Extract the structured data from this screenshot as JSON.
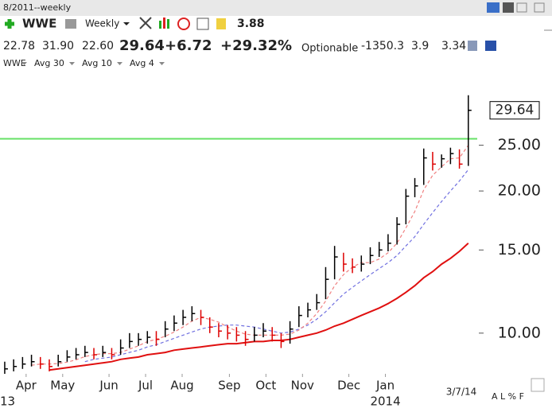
{
  "header": {
    "period": "8/2011--weekly",
    "symbol": "WWE",
    "interval": "Weekly",
    "stat": "3.88",
    "quote": {
      "open": "22.78",
      "high": "31.90",
      "low": "22.60",
      "last": "29.64",
      "change": "+6.72",
      "change_pct": "+29.32%",
      "optionable": "Optionable",
      "flow": "-1350.3",
      "ratio": "3.9",
      "eps": "3.34"
    }
  },
  "chart_data": {
    "type": "ohlc",
    "price": {
      "name": "WWE",
      "up_color": "#000000",
      "down_color": "#dd0000",
      "high": [
        8.7,
        8.8,
        8.9,
        9.0,
        8.9,
        8.8,
        9.0,
        9.2,
        9.3,
        9.4,
        9.3,
        9.4,
        9.3,
        9.7,
        10.0,
        10.0,
        10.1,
        10.1,
        10.6,
        10.9,
        11.2,
        11.4,
        11.2,
        10.8,
        10.5,
        10.4,
        10.3,
        10.1,
        10.3,
        10.5,
        10.3,
        10.0,
        10.6,
        11.4,
        11.6,
        12.1,
        13.8,
        15.3,
        14.8,
        14.4,
        14.6,
        15.2,
        15.6,
        16.2,
        17.6,
        20.2,
        21.3,
        24.6,
        24.2,
        23.9,
        24.7,
        24.5,
        31.9
      ],
      "low": [
        8.2,
        8.3,
        8.4,
        8.5,
        8.4,
        8.3,
        8.5,
        8.7,
        8.8,
        8.9,
        8.8,
        8.9,
        8.8,
        9.0,
        9.3,
        9.4,
        9.5,
        9.4,
        9.8,
        10.1,
        10.4,
        10.6,
        10.4,
        10.0,
        9.8,
        9.7,
        9.6,
        9.4,
        9.6,
        9.8,
        9.6,
        9.3,
        9.5,
        10.3,
        10.8,
        11.2,
        11.8,
        13.0,
        13.5,
        13.4,
        13.5,
        14.0,
        14.5,
        14.9,
        15.4,
        17.0,
        19.4,
        20.6,
        22.1,
        22.4,
        22.8,
        22.3,
        22.6
      ],
      "close": [
        8.4,
        8.5,
        8.6,
        8.7,
        8.6,
        8.5,
        8.7,
        8.9,
        9.0,
        9.1,
        9.0,
        9.1,
        9.0,
        9.3,
        9.6,
        9.7,
        9.8,
        9.7,
        10.2,
        10.5,
        10.8,
        11.0,
        10.8,
        10.3,
        10.1,
        10.0,
        9.9,
        9.7,
        9.9,
        10.1,
        9.9,
        9.6,
        10.2,
        10.9,
        11.2,
        11.6,
        13.0,
        14.5,
        14.0,
        13.8,
        14.0,
        14.6,
        15.0,
        15.5,
        17.0,
        19.5,
        20.5,
        23.5,
        22.8,
        23.4,
        24.0,
        22.8,
        29.64
      ]
    },
    "averages": [
      {
        "name": "Avg 30",
        "color": "#e01010",
        "dash": false,
        "values": [
          null,
          null,
          null,
          null,
          null,
          8.35,
          8.4,
          8.45,
          8.5,
          8.55,
          8.6,
          8.65,
          8.7,
          8.8,
          8.85,
          8.9,
          9.0,
          9.05,
          9.1,
          9.2,
          9.25,
          9.3,
          9.35,
          9.4,
          9.45,
          9.5,
          9.5,
          9.55,
          9.6,
          9.6,
          9.65,
          9.65,
          9.7,
          9.8,
          9.9,
          10.0,
          10.15,
          10.35,
          10.5,
          10.7,
          10.9,
          11.1,
          11.3,
          11.55,
          11.85,
          12.2,
          12.6,
          13.1,
          13.5,
          14.0,
          14.4,
          14.9,
          15.5
        ]
      },
      {
        "name": "Avg 10",
        "color": "#7070e0",
        "dash": true,
        "values": [
          null,
          null,
          null,
          null,
          null,
          null,
          null,
          null,
          null,
          8.7,
          8.8,
          8.85,
          8.9,
          9.0,
          9.1,
          9.2,
          9.35,
          9.45,
          9.6,
          9.75,
          9.9,
          10.05,
          10.2,
          10.3,
          10.35,
          10.4,
          10.4,
          10.35,
          10.3,
          10.2,
          10.1,
          10.0,
          10.05,
          10.2,
          10.4,
          10.7,
          11.1,
          11.6,
          12.1,
          12.5,
          12.9,
          13.3,
          13.7,
          14.1,
          14.6,
          15.3,
          16.0,
          17.0,
          18.0,
          19.0,
          20.0,
          21.0,
          22.2
        ]
      },
      {
        "name": "Avg 4",
        "color": "#f08080",
        "dash": true,
        "values": [
          null,
          null,
          null,
          8.55,
          8.6,
          8.6,
          8.62,
          8.68,
          8.78,
          8.92,
          9.0,
          9.05,
          9.05,
          9.1,
          9.25,
          9.4,
          9.6,
          9.7,
          9.85,
          10.05,
          10.3,
          10.6,
          10.8,
          10.7,
          10.55,
          10.3,
          10.1,
          9.95,
          9.9,
          9.9,
          9.9,
          9.9,
          9.95,
          10.15,
          10.5,
          11.0,
          11.7,
          12.6,
          13.3,
          13.8,
          14.1,
          14.1,
          14.35,
          14.8,
          15.5,
          16.7,
          18.1,
          20.1,
          21.6,
          22.5,
          23.4,
          23.5,
          25.0
        ]
      }
    ],
    "hline": {
      "value": 25.8,
      "color": "#66e066"
    },
    "log_scale": true,
    "ylim": [
      8.2,
      35.8
    ],
    "yticks": [
      {
        "value": 10,
        "label": "10.00"
      },
      {
        "value": 15,
        "label": "15.00"
      },
      {
        "value": 20,
        "label": "20.00"
      },
      {
        "value": 25,
        "label": "25.00"
      }
    ],
    "xlim": [
      -0.53,
      53.0
    ],
    "xticks": [
      {
        "value": 2.4,
        "label": "Apr"
      },
      {
        "value": 6.5,
        "label": "May"
      },
      {
        "value": 11.7,
        "label": "Jun"
      },
      {
        "value": 15.8,
        "label": "Jul"
      },
      {
        "value": 19.9,
        "label": "Aug"
      },
      {
        "value": 25.2,
        "label": "Sep"
      },
      {
        "value": 29.3,
        "label": "Oct"
      },
      {
        "value": 33.4,
        "label": "Nov"
      },
      {
        "value": 38.6,
        "label": "Dec"
      },
      {
        "value": 42.7,
        "label": "Jan"
      }
    ],
    "year_labels": [
      {
        "value": -0.53,
        "label": "13"
      },
      {
        "value": 42.7,
        "label": "2014"
      }
    ],
    "last_date": "3/7/14",
    "corner_tools": "A L % F"
  }
}
